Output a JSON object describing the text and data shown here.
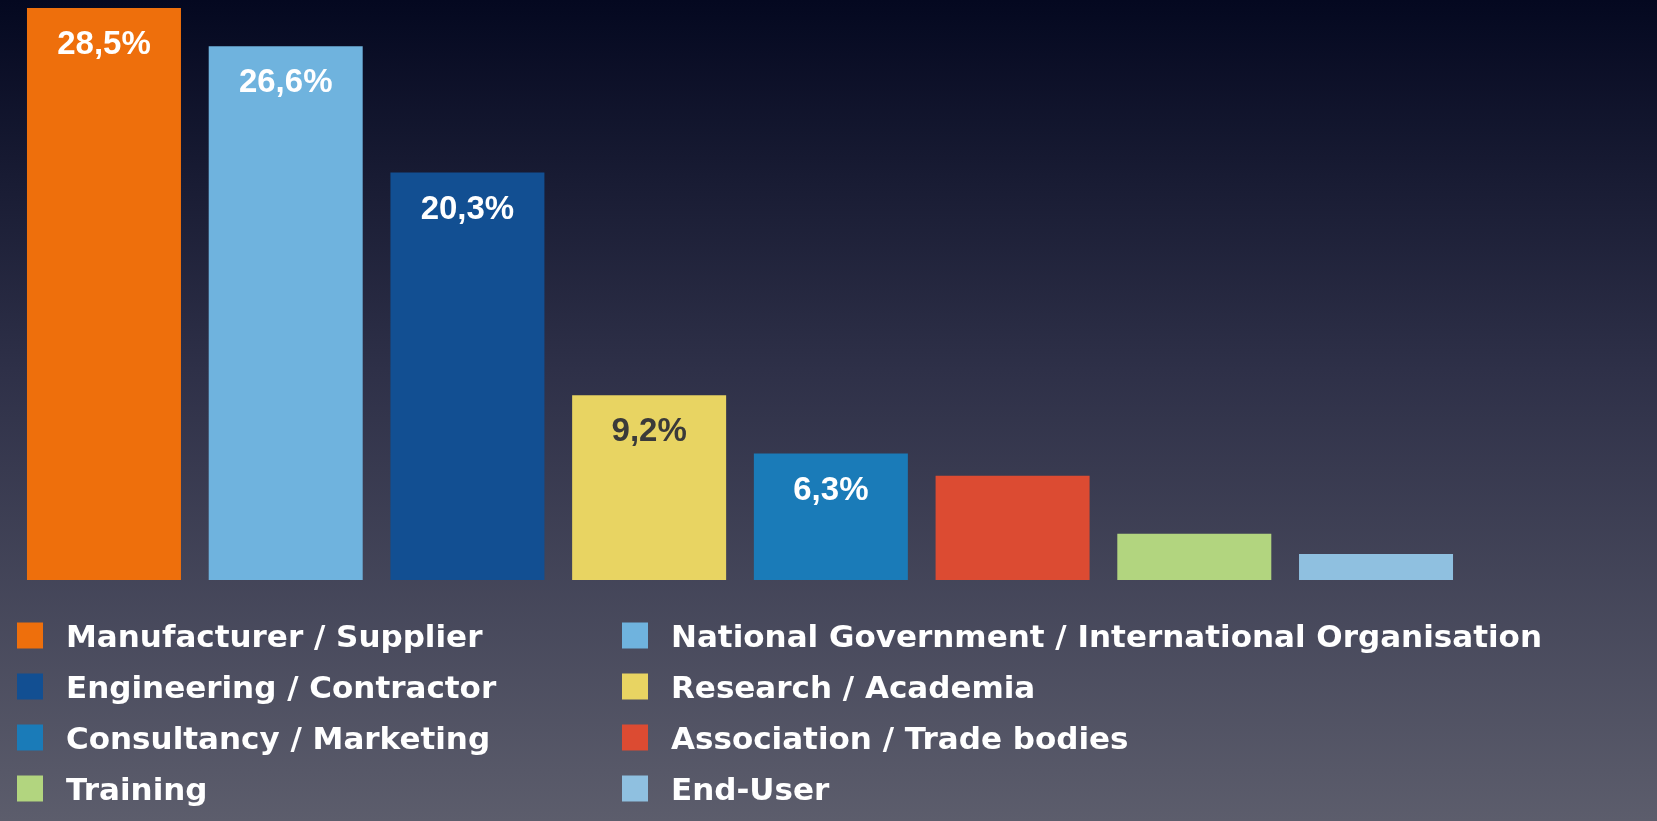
{
  "chart_data": {
    "type": "bar",
    "categories": [
      null
    ],
    "series": [
      {
        "name": "Manufacturer / Supplier",
        "color": "#ee6f0c",
        "values": [
          28.5
        ],
        "value_labels": [
          "28,5%"
        ]
      },
      {
        "name": "National Government / International Organisation",
        "color": "#6fb3de",
        "values": [
          26.6
        ],
        "value_labels": [
          "26,6%"
        ]
      },
      {
        "name": "Engineering / Contractor",
        "color": "#124f92",
        "values": [
          20.3
        ],
        "value_labels": [
          "20,3%"
        ]
      },
      {
        "name": "Research / Academia",
        "color": "#e8d462",
        "values": [
          9.2
        ],
        "value_labels": [
          "9,2%"
        ]
      },
      {
        "name": "Consultancy / Marketing",
        "color": "#1a7bb8",
        "values": [
          6.3
        ],
        "value_labels": [
          "6,3%"
        ]
      },
      {
        "name": "Association / Trade bodies",
        "color": "#dc4b32",
        "values": [
          5.2
        ],
        "value_labels": [
          null
        ]
      },
      {
        "name": "Training",
        "color": "#b2d57f",
        "values": [
          2.3
        ],
        "value_labels": [
          null
        ]
      },
      {
        "name": "End-User",
        "color": "#8fc0e0",
        "values": [
          1.3
        ],
        "value_labels": [
          null
        ]
      }
    ],
    "legend": "bottom"
  }
}
